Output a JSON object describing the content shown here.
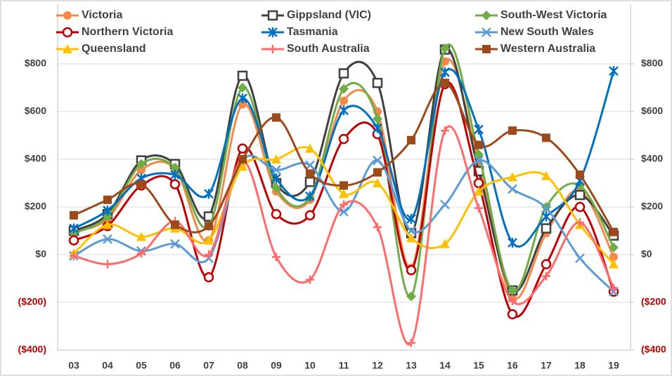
{
  "chart_data": {
    "type": "line",
    "categories": [
      "03",
      "04",
      "05",
      "06",
      "07",
      "08",
      "09",
      "10",
      "11",
      "12",
      "13",
      "14",
      "15",
      "16",
      "17",
      "18",
      "19"
    ],
    "ylim": [
      -400,
      1050
    ],
    "yticks": [
      {
        "value": -400,
        "label": "($400)"
      },
      {
        "value": -200,
        "label": "($200)"
      },
      {
        "value": 0,
        "label": "$0"
      },
      {
        "value": 200,
        "label": "$200"
      },
      {
        "value": 400,
        "label": "$400"
      },
      {
        "value": 600,
        "label": "$600"
      },
      {
        "value": 800,
        "label": "$800"
      }
    ],
    "y2lim": [
      -400,
      1050
    ],
    "y2ticks": [
      {
        "value": -400,
        "label": "($400"
      },
      {
        "value": -200,
        "label": "($200"
      },
      {
        "value": 0,
        "label": "$0"
      },
      {
        "value": 200,
        "label": "$200"
      },
      {
        "value": 400,
        "label": "$400"
      },
      {
        "value": 600,
        "label": "$600"
      },
      {
        "value": 800,
        "label": "$800"
      }
    ],
    "grid": true,
    "negative_tick_color": "#c00000",
    "series": [
      {
        "name": "Victoria",
        "color": "#f4894a",
        "marker": "circle",
        "values": [
          95,
          150,
          355,
          360,
          60,
          630,
          265,
          230,
          645,
          600,
          -55,
          810,
          380,
          -180,
          90,
          270,
          -10
        ]
      },
      {
        "name": "Gippsland (VIC)",
        "color": "#404040",
        "marker": "square-open",
        "values": [
          100,
          170,
          395,
          380,
          160,
          750,
          300,
          305,
          760,
          720,
          90,
          860,
          350,
          -150,
          110,
          250,
          80
        ]
      },
      {
        "name": "South-West Victoria",
        "color": "#70ad47",
        "marker": "diamond",
        "values": [
          90,
          160,
          380,
          365,
          120,
          700,
          280,
          240,
          695,
          570,
          -175,
          865,
          420,
          -150,
          200,
          290,
          30
        ]
      },
      {
        "name": "Northern Victoria",
        "color": "#c00000",
        "marker": "circle-open",
        "values": [
          60,
          120,
          290,
          295,
          -95,
          445,
          170,
          165,
          485,
          505,
          -65,
          715,
          300,
          -250,
          -40,
          200,
          -155
        ]
      },
      {
        "name": "Tasmania",
        "color": "#0070c0",
        "marker": "star",
        "values": [
          110,
          185,
          320,
          335,
          255,
          655,
          320,
          245,
          605,
          530,
          150,
          765,
          525,
          50,
          160,
          310,
          770
        ]
      },
      {
        "name": "New South Wales",
        "color": "#5b9bd5",
        "marker": "x",
        "values": [
          -5,
          65,
          15,
          45,
          -15,
          395,
          355,
          375,
          180,
          395,
          100,
          210,
          395,
          275,
          195,
          -15,
          -155
        ]
      },
      {
        "name": "Queensland",
        "color": "#ffc000",
        "marker": "triangle",
        "values": [
          5,
          125,
          75,
          110,
          60,
          370,
          400,
          445,
          255,
          300,
          70,
          45,
          265,
          325,
          330,
          125,
          -40
        ]
      },
      {
        "name": "South Australia",
        "color": "#ff6b6b",
        "marker": "plus",
        "values": [
          -5,
          -40,
          5,
          140,
          0,
          395,
          -10,
          -105,
          210,
          115,
          -370,
          520,
          195,
          -195,
          -90,
          135,
          -140
        ]
      },
      {
        "name": "Western Australia",
        "color": "#9c4a1a",
        "marker": "square",
        "values": [
          165,
          230,
          295,
          125,
          120,
          400,
          575,
          340,
          290,
          345,
          480,
          720,
          460,
          520,
          490,
          335,
          95
        ]
      }
    ]
  }
}
